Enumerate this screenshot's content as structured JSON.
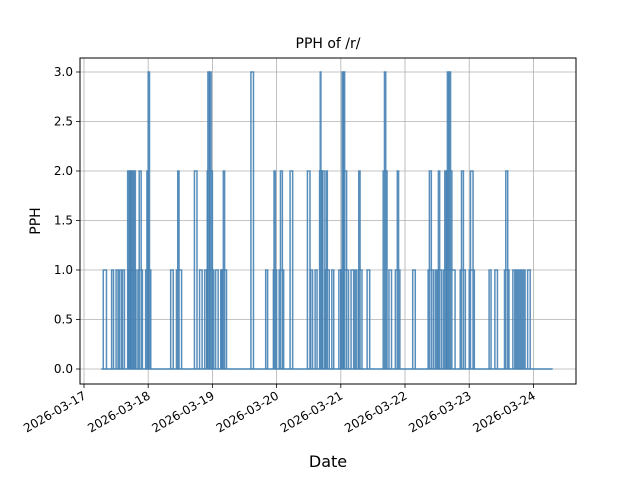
{
  "chart_data": {
    "type": "line",
    "drawstyle": "steps",
    "title": "PPH of /r/",
    "xlabel": "Date",
    "ylabel": "PPH",
    "x_tick_labels": [
      "2026-03-17",
      "2026-03-18",
      "2026-03-19",
      "2026-03-20",
      "2026-03-21",
      "2026-03-22",
      "2026-03-23",
      "2026-03-24"
    ],
    "y_tick_labels": [
      "0.0",
      "0.5",
      "1.0",
      "1.5",
      "2.0",
      "2.5",
      "3.0"
    ],
    "y_ticks": [
      0,
      0.5,
      1.0,
      1.5,
      2.0,
      2.5,
      3.0
    ],
    "ylim": [
      -0.15,
      3.15
    ],
    "xlim_days_from_2026-03-17": [
      -0.06,
      7.67
    ],
    "grid": true,
    "legend": null,
    "line_color": "#4682b4",
    "series": [
      {
        "name": "PPH",
        "x_start_day": 0.27,
        "x_end_day": 7.3,
        "pulses_day_start_end_value": [
          [
            0.3,
            0.35,
            1
          ],
          [
            0.43,
            0.46,
            1
          ],
          [
            0.5,
            0.53,
            1
          ],
          [
            0.55,
            0.58,
            1
          ],
          [
            0.6,
            0.63,
            1
          ],
          [
            0.68,
            0.7,
            2
          ],
          [
            0.71,
            0.72,
            2
          ],
          [
            0.73,
            0.74,
            2
          ],
          [
            0.75,
            0.77,
            2
          ],
          [
            0.78,
            0.8,
            2
          ],
          [
            0.69,
            0.81,
            1
          ],
          [
            0.86,
            0.89,
            2
          ],
          [
            0.84,
            0.91,
            1
          ],
          [
            0.98,
            1.0,
            2
          ],
          [
            1.0,
            1.02,
            3
          ],
          [
            0.96,
            1.04,
            1
          ],
          [
            1.35,
            1.39,
            1
          ],
          [
            1.46,
            1.48,
            2
          ],
          [
            1.44,
            1.52,
            1
          ],
          [
            1.72,
            1.76,
            2
          ],
          [
            1.8,
            1.84,
            1
          ],
          [
            1.88,
            1.92,
            1
          ],
          [
            1.93,
            1.95,
            3
          ],
          [
            1.96,
            1.98,
            3
          ],
          [
            1.92,
            2.0,
            2
          ],
          [
            1.91,
            2.02,
            1
          ],
          [
            2.05,
            2.09,
            1
          ],
          [
            2.13,
            2.15,
            1
          ],
          [
            2.17,
            2.19,
            2
          ],
          [
            2.15,
            2.22,
            1
          ],
          [
            2.6,
            2.64,
            3
          ],
          [
            2.83,
            2.86,
            1
          ],
          [
            2.96,
            2.98,
            2
          ],
          [
            2.95,
            3.0,
            1
          ],
          [
            3.06,
            3.09,
            2
          ],
          [
            3.04,
            3.11,
            1
          ],
          [
            3.21,
            3.25,
            2
          ],
          [
            3.48,
            3.52,
            2
          ],
          [
            3.53,
            3.56,
            1
          ],
          [
            3.6,
            3.63,
            1
          ],
          [
            3.68,
            3.69,
            3
          ],
          [
            3.67,
            3.71,
            2
          ],
          [
            3.71,
            3.74,
            2
          ],
          [
            3.77,
            3.79,
            2
          ],
          [
            3.76,
            3.82,
            1
          ],
          [
            3.86,
            3.89,
            1
          ],
          [
            3.97,
            4.0,
            1
          ],
          [
            4.02,
            4.04,
            3
          ],
          [
            4.05,
            4.06,
            3
          ],
          [
            4.04,
            4.09,
            2
          ],
          [
            4.0,
            4.12,
            1
          ],
          [
            4.16,
            4.2,
            1
          ],
          [
            4.22,
            4.24,
            1
          ],
          [
            4.28,
            4.3,
            2
          ],
          [
            4.27,
            4.33,
            1
          ],
          [
            4.41,
            4.45,
            1
          ],
          [
            4.68,
            4.7,
            3
          ],
          [
            4.66,
            4.72,
            2
          ],
          [
            4.75,
            4.79,
            1
          ],
          [
            4.88,
            4.9,
            2
          ],
          [
            4.85,
            4.92,
            1
          ],
          [
            5.12,
            5.16,
            1
          ],
          [
            5.38,
            5.41,
            2
          ],
          [
            5.36,
            5.44,
            1
          ],
          [
            5.47,
            5.49,
            1
          ],
          [
            5.52,
            5.54,
            2
          ],
          [
            5.51,
            5.57,
            1
          ],
          [
            5.62,
            5.64,
            2
          ],
          [
            5.66,
            5.68,
            3
          ],
          [
            5.69,
            5.71,
            3
          ],
          [
            5.65,
            5.73,
            2
          ],
          [
            5.6,
            5.78,
            1
          ],
          [
            5.88,
            5.91,
            2
          ],
          [
            5.86,
            5.94,
            1
          ],
          [
            6.02,
            6.06,
            2
          ],
          [
            6.0,
            6.08,
            1
          ],
          [
            6.31,
            6.34,
            1
          ],
          [
            6.4,
            6.44,
            1
          ],
          [
            6.57,
            6.6,
            2
          ],
          [
            6.55,
            6.62,
            1
          ],
          [
            6.68,
            6.71,
            1
          ],
          [
            6.73,
            6.75,
            1
          ],
          [
            6.77,
            6.79,
            1
          ],
          [
            6.81,
            6.83,
            1
          ],
          [
            6.85,
            6.87,
            1
          ],
          [
            6.91,
            6.95,
            1
          ]
        ]
      }
    ]
  }
}
